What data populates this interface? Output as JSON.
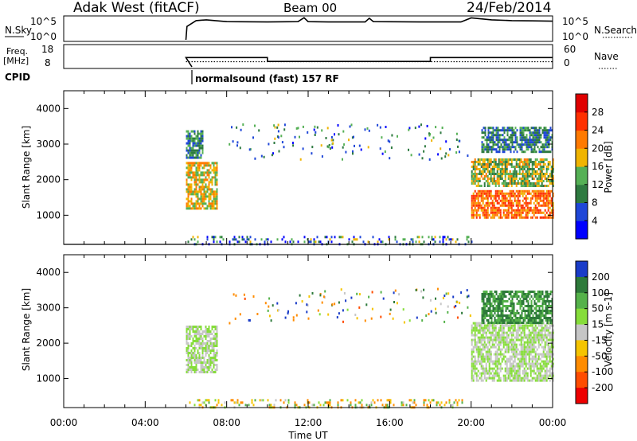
{
  "header": {
    "radar": "Adak West (fitACF)",
    "beam": "Beam 00",
    "date": "24/Feb/2014"
  },
  "noise_panel": {
    "left_label": "N.Sky",
    "right_label": "N.Search",
    "left_ticks": [
      "10^5",
      "10^0"
    ],
    "right_ticks": [
      "10^5",
      "10^0"
    ],
    "log_scale": true
  },
  "freq_panel": {
    "left_label_line1": "Freq.",
    "left_label_line2": "[MHz]",
    "right_label": "Nave",
    "left_ticks": [
      "18",
      "8"
    ],
    "right_ticks": [
      "60",
      "0"
    ],
    "freq_mhz_ylim": [
      8,
      18
    ],
    "nave_ylim": [
      0,
      60
    ]
  },
  "cpid": {
    "label": "CPID",
    "text": "normalsound (fast) 157 RF"
  },
  "x_axis": {
    "label": "Time UT",
    "ticks": [
      "00:00",
      "04:00",
      "08:00",
      "12:00",
      "16:00",
      "20:00",
      "00:00"
    ],
    "range_hours": [
      0,
      24
    ]
  },
  "range_axis": {
    "label": "Slant Range [km]",
    "ticks": [
      "1000",
      "2000",
      "3000",
      "4000"
    ],
    "ylim": [
      180,
      4500
    ]
  },
  "power_colorbar": {
    "label": "Power [dB]",
    "ticks": [
      "4",
      "8",
      "12",
      "16",
      "20",
      "24",
      "28"
    ],
    "colors": [
      "#0000ff",
      "#1f47d8",
      "#2e7a40",
      "#55b055",
      "#f0b400",
      "#ff7a00",
      "#ff3000",
      "#e00000"
    ]
  },
  "velocity_colorbar": {
    "label": "Velocity [m s-1]",
    "ticks": [
      "200",
      "100",
      "50",
      "15",
      "-15",
      "-50",
      "-100",
      "-200"
    ],
    "colors": [
      "#1a3cc8",
      "#2e7a3a",
      "#55b24a",
      "#86dd3a",
      "#c6c6c6",
      "#f5c400",
      "#ff8c00",
      "#ff4d00",
      "#ee0000"
    ]
  },
  "chart_data": [
    {
      "type": "line",
      "title": "N.Sky / N.Search",
      "x": [
        6.0,
        6.05,
        6.5,
        7.0,
        8.0,
        10.0,
        11.5,
        11.8,
        12.0,
        13.0,
        14.8,
        15.0,
        15.2,
        17.5,
        19.5,
        20.0,
        21.0,
        22.0,
        23.0,
        24.0
      ],
      "series": [
        {
          "values": [
            1,
            1000,
            20000,
            30000,
            12000,
            10000,
            12000,
            90000,
            12000,
            10000,
            10000,
            70000,
            12000,
            10000,
            10000,
            80000,
            30000,
            20000,
            18000,
            15000
          ]
        }
      ]
    },
    {
      "type": "line",
      "x": [
        6.0,
        10.0,
        10.0,
        18.0,
        18.0,
        24.0
      ],
      "series": [
        {
          "name": "Freq.",
          "values": [
            12.5,
            12.5,
            10.6,
            10.6,
            12.5,
            12.5
          ]
        },
        {
          "name": "Nave",
          "values": [
            15,
            15,
            15,
            15,
            15,
            15
          ]
        }
      ]
    },
    {
      "type": "heatmap",
      "title": "Power [dB]",
      "xlabel": "Time UT",
      "ylabel": "Slant Range [km]",
      "xlim": [
        0,
        24
      ],
      "ylim": [
        180,
        4500
      ],
      "features": [
        {
          "t": [
            6.0,
            7.5
          ],
          "range_km": [
            1200,
            2500
          ],
          "power_db": [
            14,
            26
          ]
        },
        {
          "t": [
            6.0,
            6.8
          ],
          "range_km": [
            2600,
            3400
          ],
          "power_db": [
            6,
            18
          ]
        },
        {
          "t": [
            20.0,
            24.0
          ],
          "range_km": [
            900,
            1700
          ],
          "power_db": [
            20,
            30
          ]
        },
        {
          "t": [
            20.0,
            24.0
          ],
          "range_km": [
            1800,
            2600
          ],
          "power_db": [
            10,
            24
          ]
        },
        {
          "t": [
            20.5,
            24.0
          ],
          "range_km": [
            2800,
            3500
          ],
          "power_db": [
            6,
            16
          ]
        },
        {
          "t": [
            6.0,
            20.0
          ],
          "range_km": [
            180,
            400
          ],
          "power_db": [
            2,
            20
          ]
        }
      ]
    },
    {
      "type": "heatmap",
      "title": "Velocity [m s-1]",
      "xlabel": "Time UT",
      "ylabel": "Slant Range [km]",
      "xlim": [
        0,
        24
      ],
      "ylim": [
        180,
        4500
      ],
      "features": [
        {
          "t": [
            6.0,
            7.5
          ],
          "range_km": [
            1200,
            2500
          ],
          "velocity_ms": [
            -15,
            15
          ]
        },
        {
          "t": [
            20.0,
            24.0
          ],
          "range_km": [
            900,
            2600
          ],
          "velocity_ms": [
            -15,
            15
          ]
        },
        {
          "t": [
            20.5,
            24.0
          ],
          "range_km": [
            2600,
            3500
          ],
          "velocity_ms": [
            15,
            100
          ]
        },
        {
          "t": [
            6.0,
            20.0
          ],
          "range_km": [
            180,
            400
          ],
          "velocity_ms": [
            -100,
            50
          ]
        }
      ]
    }
  ]
}
